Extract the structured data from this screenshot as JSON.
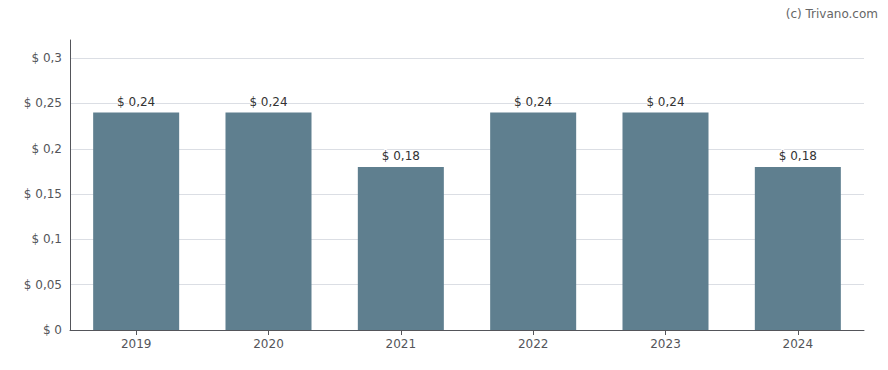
{
  "chart_data": {
    "type": "bar",
    "annotation": "(c) Trivano.com",
    "categories": [
      "2019",
      "2020",
      "2021",
      "2022",
      "2023",
      "2024"
    ],
    "values": [
      0.24,
      0.24,
      0.18,
      0.24,
      0.24,
      0.18
    ],
    "value_labels": [
      "$ 0,24",
      "$ 0,24",
      "$ 0,18",
      "$ 0,24",
      "$ 0,24",
      "$ 0,18"
    ],
    "data_labels": true,
    "color": "#5f7f8f",
    "ylim": [
      0,
      0.32
    ],
    "yticks": [
      {
        "value": 0,
        "label": "$ 0"
      },
      {
        "value": 0.05,
        "label": "$ 0,05"
      },
      {
        "value": 0.1,
        "label": "$ 0,1"
      },
      {
        "value": 0.15,
        "label": "$ 0,15"
      },
      {
        "value": 0.2,
        "label": "$ 0,2"
      },
      {
        "value": 0.25,
        "label": "$ 0,25"
      },
      {
        "value": 0.3,
        "label": "$ 0,3"
      }
    ],
    "grid": true
  }
}
